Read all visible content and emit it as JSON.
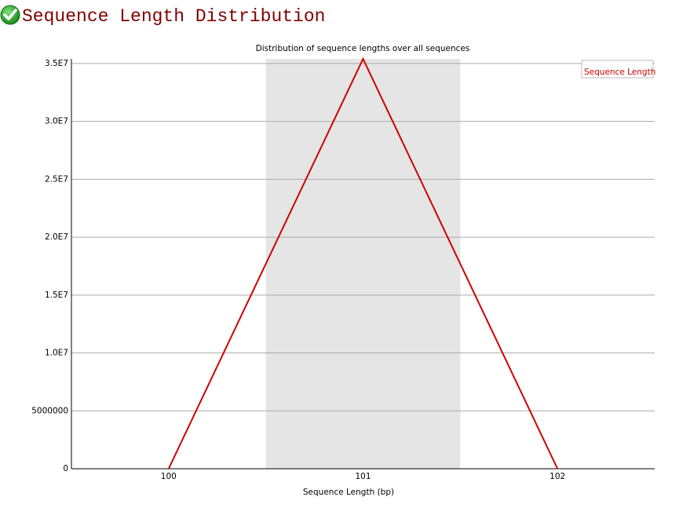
{
  "header": {
    "title": "Sequence Length Distribution"
  },
  "chart_data": {
    "type": "line",
    "title": "Distribution of sequence lengths over all sequences",
    "x_label": "Sequence Length (bp)",
    "categories": [
      "100",
      "101",
      "102"
    ],
    "series": [
      {
        "name": "Sequence Length",
        "color": "#cc0000",
        "values": [
          0,
          35400000,
          0
        ]
      }
    ],
    "ylim": [
      0,
      35400000
    ],
    "yticks": [
      0,
      5000000,
      {
        "value": 10000000,
        "label": "1.0E7"
      },
      {
        "value": 15000000,
        "label": "1.5E7"
      },
      {
        "value": 20000000,
        "label": "2.0E7"
      },
      {
        "value": 25000000,
        "label": "2.5E7"
      },
      {
        "value": 30000000,
        "label": "3.0E7"
      },
      {
        "value": 35000000,
        "label": "3.5E7"
      }
    ],
    "grid": true,
    "legend": "upper right"
  }
}
